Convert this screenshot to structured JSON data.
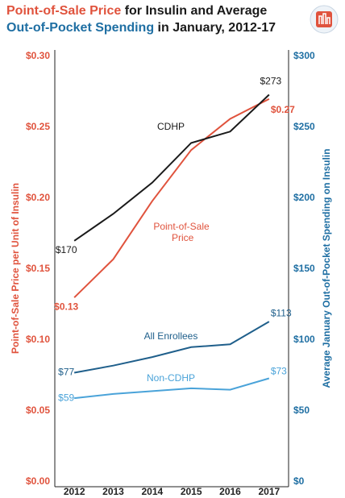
{
  "chart_data": {
    "type": "line",
    "title": [
      {
        "text": "Point-of-Sale Price",
        "color": "#e0533d"
      },
      {
        "text": " for Insulin and Average",
        "color": "#1a1a1a"
      },
      {
        "text": "Out-of-Pocket Spending",
        "color": "#1f6fa3"
      },
      {
        "text": " in January, 2012-17",
        "color": "#1a1a1a"
      }
    ],
    "y_label": "Point-of-Sale Price per Unit of Insulin",
    "y2_label": "Average January Out-of-Pocket Spending on Insulin",
    "categories": [
      "2012",
      "2013",
      "2014",
      "2015",
      "2016",
      "2017"
    ],
    "ylim": [
      0,
      0.3
    ],
    "yticks": [
      {
        "value": 0,
        "label": "$0.00"
      },
      {
        "value": 0.05,
        "label": "$0.05"
      },
      {
        "value": 0.1,
        "label": "$0.10"
      },
      {
        "value": 0.15,
        "label": "$0.15"
      },
      {
        "value": 0.2,
        "label": "$0.20"
      },
      {
        "value": 0.25,
        "label": "$0.25"
      },
      {
        "value": 0.3,
        "label": "$0.30"
      }
    ],
    "y2lim": [
      0,
      300
    ],
    "y2ticks": [
      {
        "value": 0,
        "label": "$0"
      },
      {
        "value": 50,
        "label": "$50"
      },
      {
        "value": 100,
        "label": "$100"
      },
      {
        "value": 150,
        "label": "$150"
      },
      {
        "value": 200,
        "label": "$200"
      },
      {
        "value": 250,
        "label": "$250"
      },
      {
        "value": 300,
        "label": "$300"
      }
    ],
    "series": [
      {
        "name": "Point-of-Sale Price",
        "color": "#e0533d",
        "values": [
          0.13,
          0.157,
          0.198,
          0.234,
          0.256,
          0.27
        ],
        "value_labels": [
          "$0.13",
          null,
          null,
          null,
          null,
          "$0.27"
        ]
      },
      {
        "name": "CDHP",
        "color": "#1a1a1a",
        "axis": "y2",
        "values": [
          170,
          189,
          211,
          239,
          247,
          273
        ],
        "value_labels": [
          "$170",
          null,
          null,
          null,
          null,
          "$273"
        ]
      },
      {
        "name": "All Enrollees",
        "color": "#1f5f8b",
        "axis": "y2",
        "values": [
          77,
          82,
          88,
          95,
          97,
          113
        ],
        "value_labels": [
          "$77",
          null,
          null,
          null,
          null,
          "$113"
        ]
      },
      {
        "name": "Non-CDHP",
        "color": "#4aa3d9",
        "axis": "y2",
        "values": [
          59,
          62,
          64,
          66,
          65,
          73
        ],
        "value_labels": [
          "$59",
          null,
          null,
          null,
          null,
          "$73"
        ]
      }
    ]
  }
}
